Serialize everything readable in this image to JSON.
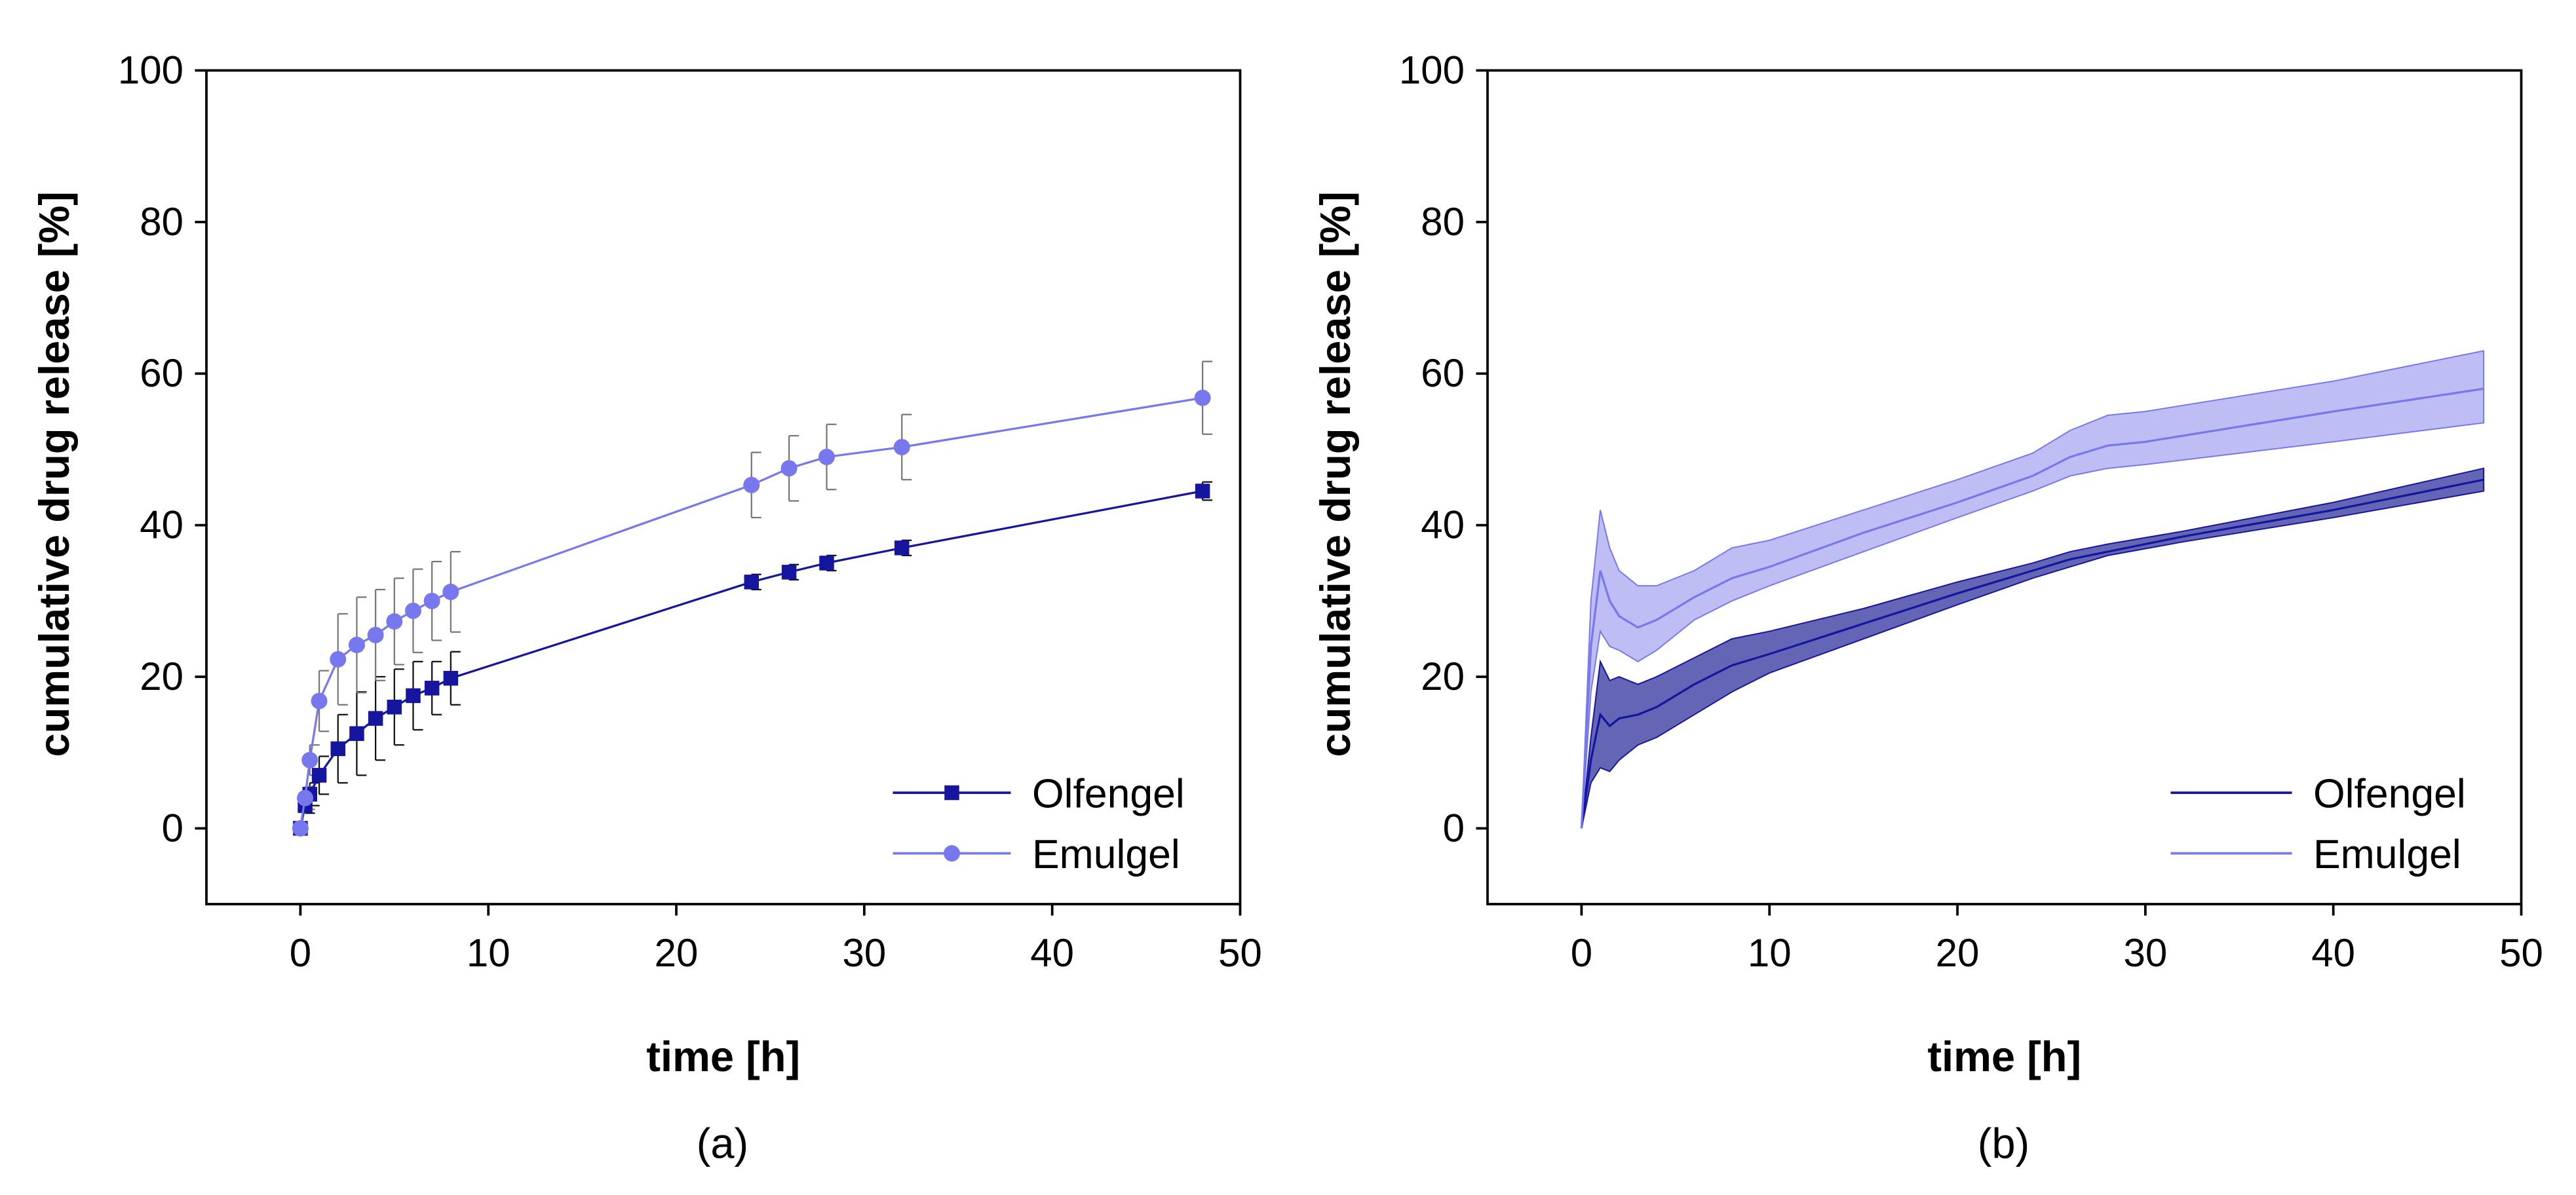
{
  "colors": {
    "olfengel": "#1515a0",
    "emulgel": "#7878ee",
    "olfengel_band": "#4a4aa8",
    "emulgel_band": "#b3b3f3"
  },
  "chart_data": [
    {
      "type": "line",
      "panel_label": "(a)",
      "xlabel": "time [h]",
      "ylabel": "cumulative drug release [%]",
      "xlim": [
        -5,
        50
      ],
      "ylim": [
        -10,
        100
      ],
      "xticks": [
        0,
        10,
        20,
        30,
        40,
        50
      ],
      "yticks": [
        0,
        20,
        40,
        60,
        80,
        100
      ],
      "legend_position": "bottom-right",
      "series": [
        {
          "name": "Olfengel",
          "marker": "square",
          "x": [
            0,
            0.25,
            0.5,
            1,
            2,
            3,
            4,
            5,
            6,
            7,
            8,
            24,
            26,
            28,
            32,
            48
          ],
          "y": [
            0,
            3,
            4.5,
            7,
            10.5,
            12.5,
            14.5,
            16,
            17.5,
            18.5,
            19.8,
            32.5,
            33.8,
            35,
            37,
            44.5
          ],
          "err": [
            0,
            1,
            1.5,
            2.5,
            4.5,
            5.5,
            5.5,
            5,
            4.5,
            3.5,
            3.5,
            1,
            1,
            1,
            1,
            1.2
          ]
        },
        {
          "name": "Emulgel",
          "marker": "circle",
          "x": [
            0,
            0.25,
            0.5,
            1,
            2,
            3,
            4,
            5,
            6,
            7,
            8,
            24,
            26,
            28,
            32,
            48
          ],
          "y": [
            0,
            4,
            9,
            16.8,
            22.3,
            24.2,
            25.5,
            27.3,
            28.7,
            30,
            31.2,
            45.3,
            47.5,
            49,
            50.3,
            56.8
          ],
          "err": [
            0,
            1.5,
            2,
            4,
            6,
            6.3,
            6,
            5.7,
            5.5,
            5.2,
            5.3,
            4.3,
            4.3,
            4.3,
            4.3,
            4.8
          ]
        }
      ]
    },
    {
      "type": "area",
      "panel_label": "(b)",
      "xlabel": "time [h]",
      "ylabel": "cumulative drug release [%]",
      "xlim": [
        -5,
        50
      ],
      "ylim": [
        -10,
        100
      ],
      "xticks": [
        0,
        10,
        20,
        30,
        40,
        50
      ],
      "yticks": [
        0,
        20,
        40,
        60,
        80,
        100
      ],
      "legend_position": "bottom-right",
      "series": [
        {
          "name": "Olfengel",
          "x": [
            0,
            0.5,
            1,
            1.5,
            2,
            3,
            4,
            6,
            8,
            10,
            15,
            20,
            24,
            26,
            28,
            32,
            40,
            48
          ],
          "y": [
            0,
            9,
            15,
            13.5,
            14.5,
            15,
            16,
            19,
            21.5,
            23,
            27,
            31,
            34,
            35.5,
            36.5,
            38.5,
            42,
            46
          ],
          "lower": [
            0,
            6,
            8,
            7.5,
            9,
            11,
            12,
            15,
            18,
            20.5,
            25,
            29.5,
            33,
            34.5,
            36,
            37.8,
            41,
            44.5
          ],
          "upper": [
            0,
            12,
            22,
            19.5,
            20,
            19,
            20,
            22.5,
            25,
            26,
            29,
            32.5,
            35,
            36.5,
            37.5,
            39.2,
            43,
            47.5
          ]
        },
        {
          "name": "Emulgel",
          "x": [
            0,
            0.5,
            1,
            1.5,
            2,
            3,
            4,
            6,
            8,
            10,
            15,
            20,
            24,
            26,
            28,
            30,
            35,
            40,
            48
          ],
          "y": [
            0,
            24,
            34,
            30,
            28,
            26.5,
            27.5,
            30.5,
            33,
            34.5,
            39,
            43,
            46.5,
            49,
            50.5,
            51,
            53,
            55,
            58
          ],
          "lower": [
            0,
            18,
            26,
            24,
            23.5,
            22,
            23.5,
            27.5,
            30,
            32,
            36.5,
            41,
            44.5,
            46.5,
            47.5,
            48,
            49.5,
            51,
            53.5
          ],
          "upper": [
            0,
            30,
            42,
            37,
            34,
            32,
            32,
            34,
            37,
            38,
            42,
            46,
            49.5,
            52.5,
            54.5,
            55,
            57,
            59,
            63
          ]
        }
      ]
    }
  ]
}
